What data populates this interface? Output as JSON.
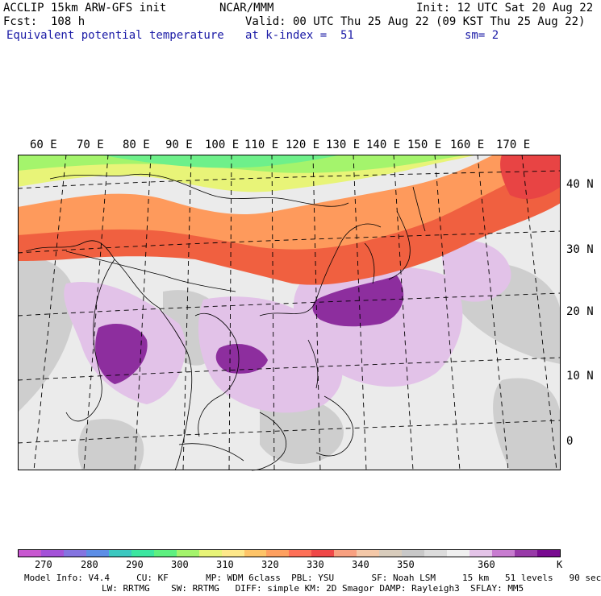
{
  "header": {
    "model_title": "ACCLIP 15km ARW-GFS init",
    "org": "NCAR/MMM",
    "init": "Init: 12 UTC Sat 20 Aug 22",
    "fcst": "Fcst:  108 h",
    "valid": "Valid: 00 UTC Thu 25 Aug 22 (09 KST Thu 25 Aug 22)",
    "field": "Equivalent potential temperature",
    "level": "at k-index =  51",
    "smooth": "sm= 2"
  },
  "map": {
    "lon_labels": [
      "60 E",
      "70 E",
      "80 E",
      "90 E",
      "100 E",
      "110 E",
      "120 E",
      "130 E",
      "140 E",
      "150 E",
      "160 E",
      "170 E"
    ],
    "lat_labels": [
      "40 N",
      "30 N",
      "20 N",
      "10 N",
      "0"
    ]
  },
  "colorbar": {
    "colors": [
      "#c858d0",
      "#a452d8",
      "#8474e0",
      "#5c8ee6",
      "#3cc8c0",
      "#3ce6a0",
      "#5ef080",
      "#a4f46c",
      "#e8f478",
      "#fee88a",
      "#fec468",
      "#fea060",
      "#fe7058",
      "#f04848",
      "#f8a080",
      "#f4c8a8",
      "#d8ccbc",
      "#c8c8c8",
      "#dcdcdc",
      "#f0f0f0",
      "#e4c4e8",
      "#c87cd0",
      "#983aa8",
      "#780a90"
    ],
    "labels": [
      "270",
      "280",
      "290",
      "300",
      "310",
      "320",
      "330",
      "340",
      "350",
      "360"
    ],
    "unit": "K"
  },
  "footer": {
    "line1": "Model Info: V4.4     CU: KF       MP: WDM 6class  PBL: YSU       SF: Noah LSM     15 km   51 levels   90 sec",
    "line2": "LW: RRTMG    SW: RRTMG   DIFF: simple KM: 2D Smagor DAMP: Rayleigh3  SFLAY: MM5"
  }
}
